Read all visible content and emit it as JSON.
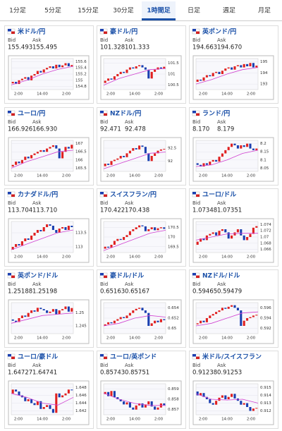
{
  "tabs": [
    "1分足",
    "5分足",
    "15分足",
    "30分足",
    "1時間足",
    "日足",
    "週足",
    "月足"
  ],
  "active_tab": 4,
  "bid_label": "Bid",
  "ask_label": "Ask",
  "x_labels": [
    "2:00",
    "14:00",
    "2:00"
  ],
  "up_color": "#e02020",
  "down_color": "#1a3fb0",
  "ma_color": "#d040d0",
  "pairs": [
    {
      "name": "米ドル/円",
      "bid": "155.493",
      "ask": "155.495",
      "ylim": [
        154.7,
        155.7
      ],
      "yticks": [
        154.8,
        155,
        155.2,
        155.4,
        155.6
      ],
      "closes": [
        154.9,
        154.95,
        154.88,
        155.0,
        155.05,
        155.1,
        155.0,
        155.15,
        155.2,
        155.3,
        155.25,
        155.35,
        155.4,
        155.45,
        155.38,
        155.5,
        155.42,
        155.48,
        155.55,
        155.45,
        155.49
      ],
      "ma": [
        154.85,
        155.0,
        155.2,
        155.35,
        155.45
      ]
    },
    {
      "name": "豪ドル/円",
      "bid": "101.328",
      "ask": "101.333",
      "ylim": [
        100.3,
        101.7
      ],
      "yticks": [
        100.5,
        101,
        101.5
      ],
      "closes": [
        100.6,
        100.7,
        100.8,
        100.75,
        100.9,
        101.0,
        101.1,
        101.05,
        101.2,
        101.3,
        101.25,
        101.35,
        101.4,
        101.3,
        101.2,
        100.8,
        101.1,
        101.2,
        101.3,
        101.25,
        101.33
      ],
      "ma": [
        100.5,
        100.8,
        101.0,
        101.2,
        101.25
      ]
    },
    {
      "name": "英ポンド/円",
      "bid": "194.663",
      "ask": "194.670",
      "ylim": [
        192.5,
        195.3
      ],
      "yticks": [
        193,
        194,
        195
      ],
      "closes": [
        193.2,
        193.4,
        193.3,
        193.6,
        193.8,
        193.7,
        194.0,
        194.1,
        193.9,
        194.2,
        194.4,
        194.5,
        194.3,
        194.6,
        194.7,
        194.5,
        194.8,
        194.6,
        194.9,
        194.5,
        194.66
      ],
      "ma": [
        193.0,
        193.4,
        193.9,
        194.3,
        194.5
      ]
    },
    {
      "name": "ユーロ/円",
      "bid": "166.926",
      "ask": "166.930",
      "ylim": [
        165.3,
        167.2
      ],
      "yticks": [
        165.5,
        166,
        166.5,
        167
      ],
      "closes": [
        165.6,
        165.7,
        165.9,
        165.8,
        166.0,
        166.2,
        166.1,
        166.3,
        166.4,
        166.5,
        166.6,
        166.5,
        166.7,
        166.8,
        166.9,
        166.7,
        166.1,
        166.5,
        166.8,
        166.7,
        166.93
      ],
      "ma": [
        165.5,
        165.9,
        166.2,
        166.5,
        166.6
      ]
    },
    {
      "name": "NZドル/円",
      "bid": "92.471",
      "ask": "92.478",
      "ylim": [
        91.6,
        92.8
      ],
      "yticks": [
        92,
        92.5
      ],
      "closes": [
        91.8,
        91.9,
        91.85,
        92.0,
        92.05,
        92.1,
        92.2,
        92.15,
        92.3,
        92.4,
        92.5,
        92.45,
        92.6,
        92.55,
        92.3,
        92.0,
        92.2,
        92.3,
        92.4,
        92.45,
        92.47
      ],
      "ma": [
        91.7,
        91.9,
        92.1,
        92.3,
        92.35
      ]
    },
    {
      "name": "ランド/円",
      "bid": "8.170",
      "ask": "8.179",
      "ylim": [
        8.03,
        8.22
      ],
      "yticks": [
        8.05,
        8.1,
        8.15,
        8.2
      ],
      "closes": [
        8.08,
        8.07,
        8.06,
        8.08,
        8.07,
        8.09,
        8.1,
        8.09,
        8.12,
        8.14,
        8.16,
        8.18,
        8.2,
        8.19,
        8.17,
        8.19,
        8.18,
        8.2,
        8.17,
        8.16,
        8.17
      ],
      "ma": [
        8.06,
        8.07,
        8.1,
        8.14,
        8.16
      ]
    },
    {
      "name": "カナダドル/円",
      "bid": "113.704",
      "ask": "113.710",
      "ylim": [
        112.8,
        113.9
      ],
      "yticks": [
        113,
        113.5
      ],
      "closes": [
        112.9,
        113.0,
        113.1,
        113.05,
        113.2,
        113.3,
        113.25,
        113.4,
        113.5,
        113.6,
        113.55,
        113.7,
        113.8,
        113.75,
        113.6,
        113.5,
        113.65,
        113.7,
        113.6,
        113.75,
        113.7
      ],
      "ma": [
        112.9,
        113.1,
        113.3,
        113.5,
        113.6
      ]
    },
    {
      "name": "スイスフラン/円",
      "bid": "170.422",
      "ask": "170.438",
      "ylim": [
        169.2,
        170.8
      ],
      "yticks": [
        169.5,
        170,
        170.5
      ],
      "closes": [
        169.4,
        169.5,
        169.45,
        169.6,
        169.8,
        169.9,
        169.85,
        170.0,
        170.1,
        170.3,
        170.4,
        170.5,
        170.6,
        170.55,
        170.3,
        170.4,
        170.5,
        170.35,
        170.45,
        170.5,
        170.42
      ],
      "ma": [
        169.3,
        169.6,
        169.9,
        170.2,
        170.35
      ]
    },
    {
      "name": "ユーロ/ドル",
      "bid": "1.07348",
      "ask": "1.07351",
      "ylim": [
        1.065,
        1.075
      ],
      "yticks": [
        1.066,
        1.068,
        1.07,
        1.072,
        1.074
      ],
      "closes": [
        1.0675,
        1.0685,
        1.0695,
        1.069,
        1.0705,
        1.071,
        1.0715,
        1.0705,
        1.072,
        1.0725,
        1.0715,
        1.0695,
        1.0705,
        1.0715,
        1.0725,
        1.0705,
        1.069,
        1.07,
        1.071,
        1.073,
        1.0735
      ],
      "ma": [
        1.069,
        1.07,
        1.071,
        1.0712,
        1.0712
      ]
    },
    {
      "name": "英ポンド/ドル",
      "bid": "1.25188",
      "ask": "1.25198",
      "ylim": [
        1.242,
        1.254
      ],
      "yticks": [
        1.245,
        1.25
      ],
      "closes": [
        1.2475,
        1.247,
        1.2465,
        1.248,
        1.249,
        1.2485,
        1.25,
        1.251,
        1.2505,
        1.252,
        1.2515,
        1.251,
        1.25,
        1.2505,
        1.2515,
        1.2495,
        1.251,
        1.2515,
        1.2525,
        1.2505,
        1.2519
      ],
      "ma": [
        1.246,
        1.2475,
        1.249,
        1.2495,
        1.25
      ]
    },
    {
      "name": "豪ドル/ドル",
      "bid": "0.65163",
      "ask": "0.65167",
      "ylim": [
        0.649,
        0.655
      ],
      "yticks": [
        0.65,
        0.652,
        0.654
      ],
      "closes": [
        0.6505,
        0.6508,
        0.6512,
        0.651,
        0.6515,
        0.6518,
        0.6522,
        0.652,
        0.6525,
        0.653,
        0.6535,
        0.6538,
        0.654,
        0.6535,
        0.653,
        0.6505,
        0.651,
        0.6515,
        0.6512,
        0.6518,
        0.6516
      ],
      "ma": [
        0.6505,
        0.651,
        0.652,
        0.6525,
        0.6522
      ]
    },
    {
      "name": "NZドル/ドル",
      "bid": "0.59465",
      "ask": "0.59479",
      "ylim": [
        0.591,
        0.597
      ],
      "yticks": [
        0.592,
        0.594,
        0.596
      ],
      "closes": [
        0.5928,
        0.593,
        0.5935,
        0.5932,
        0.594,
        0.5945,
        0.5948,
        0.5952,
        0.5955,
        0.596,
        0.5958,
        0.5962,
        0.5965,
        0.596,
        0.5955,
        0.5925,
        0.5935,
        0.594,
        0.5942,
        0.5945,
        0.59465
      ],
      "ma": [
        0.5925,
        0.593,
        0.594,
        0.595,
        0.5952
      ]
    },
    {
      "name": "ユーロ/豪ドル",
      "bid": "1.64727",
      "ask": "1.64741",
      "ylim": [
        1.641,
        1.649
      ],
      "yticks": [
        1.642,
        1.644,
        1.646,
        1.648
      ],
      "closes": [
        1.6465,
        1.6475,
        1.647,
        1.646,
        1.6455,
        1.6445,
        1.645,
        1.644,
        1.6435,
        1.6445,
        1.6425,
        1.643,
        1.6435,
        1.6425,
        1.6415,
        1.6465,
        1.6455,
        1.646,
        1.6465,
        1.6475,
        1.6473
      ],
      "ma": [
        1.6465,
        1.6455,
        1.644,
        1.6435,
        1.6455
      ]
    },
    {
      "name": "ユーロ/英ポンド",
      "bid": "0.85743",
      "ask": "0.85751",
      "ylim": [
        0.8565,
        0.8595
      ],
      "yticks": [
        0.857,
        0.858,
        0.859
      ],
      "closes": [
        0.8585,
        0.8587,
        0.8583,
        0.8588,
        0.8582,
        0.858,
        0.8578,
        0.8575,
        0.8577,
        0.8572,
        0.857,
        0.8574,
        0.8576,
        0.8572,
        0.8575,
        0.8578,
        0.8573,
        0.857,
        0.8572,
        0.8576,
        0.85743
      ],
      "ma": [
        0.8586,
        0.858,
        0.8576,
        0.8574,
        0.8574
      ]
    },
    {
      "name": "米ドル/スイスフラン",
      "bid": "0.91238",
      "ask": "0.91253",
      "ylim": [
        0.9115,
        0.9155
      ],
      "yticks": [
        0.912,
        0.913,
        0.914,
        0.915
      ],
      "closes": [
        0.9145,
        0.914,
        0.9143,
        0.9138,
        0.9135,
        0.913,
        0.9128,
        0.9133,
        0.9137,
        0.914,
        0.9135,
        0.9138,
        0.9142,
        0.9136,
        0.9133,
        0.9128,
        0.913,
        0.9125,
        0.912,
        0.9123,
        0.91238
      ],
      "ma": [
        0.9142,
        0.9135,
        0.9134,
        0.9135,
        0.913
      ]
    }
  ]
}
